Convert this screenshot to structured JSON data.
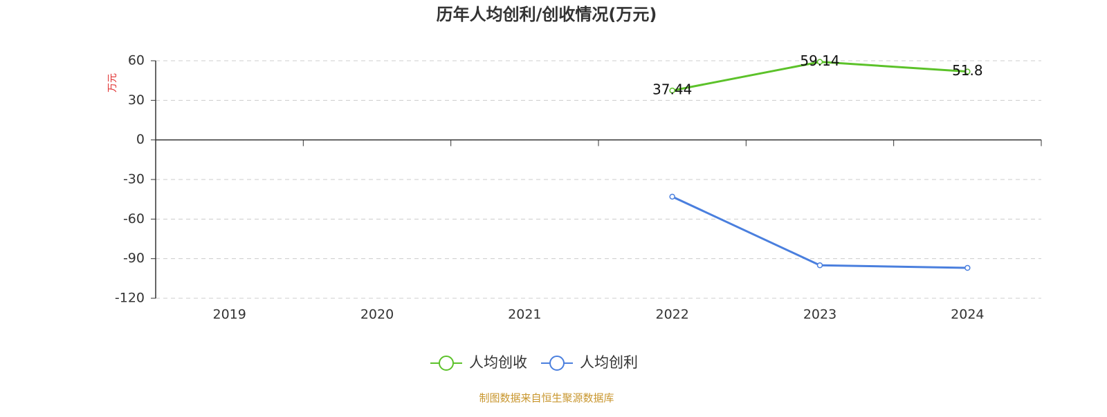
{
  "chart_data": {
    "type": "line",
    "title": "历年人均创利/创收情况(万元)",
    "y_label": "万元",
    "categories": [
      "2019",
      "2020",
      "2021",
      "2022",
      "2023",
      "2024"
    ],
    "series": [
      {
        "name": "人均创收",
        "color": "#5cc22a",
        "values": [
          null,
          null,
          null,
          37.44,
          59.14,
          51.8
        ],
        "show_labels": true
      },
      {
        "name": "人均创利",
        "color": "#4a7fde",
        "values": [
          null,
          null,
          null,
          -43,
          -95,
          -97
        ],
        "show_labels": false
      }
    ],
    "ylim": [
      -120,
      60
    ],
    "yticks": [
      -120,
      -90,
      -60,
      -30,
      0,
      30,
      60
    ],
    "grid": true,
    "legend": "bottom",
    "source": "制图数据来自恒生聚源数据库"
  }
}
